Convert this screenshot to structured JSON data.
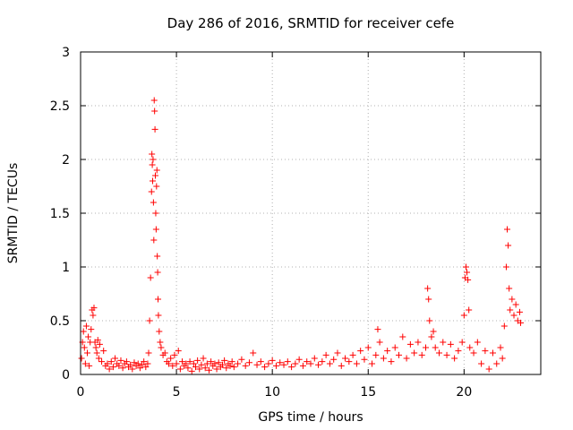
{
  "chart_data": {
    "type": "scatter",
    "title": "Day 286 of 2016, SRMTID for receiver cefe",
    "xlabel": "GPS time / hours",
    "ylabel": "SRMTID / TECUs",
    "xlim": [
      0,
      24
    ],
    "ylim": [
      0,
      3
    ],
    "xticks": [
      0,
      5,
      10,
      15,
      20
    ],
    "xtick_labels": [
      "0",
      "5",
      "10",
      "15",
      "20"
    ],
    "yticks": [
      0,
      0.5,
      1,
      1.5,
      2,
      2.5,
      3
    ],
    "ytick_labels": [
      "0",
      "0.5",
      "1",
      "1.5",
      "2",
      "2.5",
      "3"
    ],
    "grid": true,
    "marker": "+",
    "color": "#ff0000",
    "series": [
      {
        "name": "SRMTID",
        "points": [
          [
            0.05,
            0.15
          ],
          [
            0.1,
            0.3
          ],
          [
            0.15,
            0.4
          ],
          [
            0.2,
            0.25
          ],
          [
            0.25,
            0.1
          ],
          [
            0.3,
            0.45
          ],
          [
            0.35,
            0.2
          ],
          [
            0.4,
            0.35
          ],
          [
            0.45,
            0.08
          ],
          [
            0.5,
            0.3
          ],
          [
            0.55,
            0.42
          ],
          [
            0.6,
            0.6
          ],
          [
            0.65,
            0.55
          ],
          [
            0.7,
            0.62
          ],
          [
            0.75,
            0.3
          ],
          [
            0.8,
            0.25
          ],
          [
            0.85,
            0.2
          ],
          [
            0.9,
            0.32
          ],
          [
            0.95,
            0.15
          ],
          [
            1.0,
            0.28
          ],
          [
            1.1,
            0.12
          ],
          [
            1.2,
            0.22
          ],
          [
            1.3,
            0.08
          ],
          [
            1.4,
            0.1
          ],
          [
            1.5,
            0.05
          ],
          [
            1.6,
            0.12
          ],
          [
            1.7,
            0.07
          ],
          [
            1.8,
            0.15
          ],
          [
            1.9,
            0.1
          ],
          [
            2.0,
            0.08
          ],
          [
            2.1,
            0.13
          ],
          [
            2.2,
            0.06
          ],
          [
            2.3,
            0.1
          ],
          [
            2.4,
            0.12
          ],
          [
            2.5,
            0.07
          ],
          [
            2.6,
            0.09
          ],
          [
            2.7,
            0.05
          ],
          [
            2.8,
            0.11
          ],
          [
            2.9,
            0.08
          ],
          [
            3.0,
            0.1
          ],
          [
            3.1,
            0.06
          ],
          [
            3.2,
            0.09
          ],
          [
            3.3,
            0.12
          ],
          [
            3.4,
            0.07
          ],
          [
            3.5,
            0.1
          ],
          [
            3.55,
            0.2
          ],
          [
            3.6,
            0.5
          ],
          [
            3.65,
            0.9
          ],
          [
            3.7,
            1.7
          ],
          [
            3.72,
            2.05
          ],
          [
            3.74,
            1.95
          ],
          [
            3.76,
            1.8
          ],
          [
            3.78,
            2.0
          ],
          [
            3.8,
            1.6
          ],
          [
            3.82,
            1.25
          ],
          [
            3.84,
            2.55
          ],
          [
            3.86,
            2.45
          ],
          [
            3.88,
            2.28
          ],
          [
            3.9,
            1.85
          ],
          [
            3.92,
            1.5
          ],
          [
            3.94,
            1.35
          ],
          [
            3.96,
            1.75
          ],
          [
            3.98,
            1.9
          ],
          [
            4.0,
            1.1
          ],
          [
            4.02,
            0.95
          ],
          [
            4.04,
            0.7
          ],
          [
            4.06,
            0.55
          ],
          [
            4.1,
            0.4
          ],
          [
            4.15,
            0.3
          ],
          [
            4.2,
            0.25
          ],
          [
            4.3,
            0.18
          ],
          [
            4.4,
            0.2
          ],
          [
            4.5,
            0.12
          ],
          [
            4.6,
            0.1
          ],
          [
            4.7,
            0.15
          ],
          [
            4.8,
            0.08
          ],
          [
            4.9,
            0.18
          ],
          [
            5.0,
            0.1
          ],
          [
            5.1,
            0.22
          ],
          [
            5.2,
            0.05
          ],
          [
            5.3,
            0.12
          ],
          [
            5.4,
            0.08
          ],
          [
            5.5,
            0.1
          ],
          [
            5.6,
            0.06
          ],
          [
            5.7,
            0.12
          ],
          [
            5.8,
            0.03
          ],
          [
            5.9,
            0.1
          ],
          [
            6.0,
            0.07
          ],
          [
            6.1,
            0.13
          ],
          [
            6.2,
            0.05
          ],
          [
            6.3,
            0.09
          ],
          [
            6.4,
            0.15
          ],
          [
            6.5,
            0.06
          ],
          [
            6.6,
            0.1
          ],
          [
            6.7,
            0.04
          ],
          [
            6.8,
            0.12
          ],
          [
            6.9,
            0.08
          ],
          [
            7.0,
            0.1
          ],
          [
            7.1,
            0.05
          ],
          [
            7.2,
            0.11
          ],
          [
            7.3,
            0.07
          ],
          [
            7.4,
            0.09
          ],
          [
            7.5,
            0.13
          ],
          [
            7.6,
            0.06
          ],
          [
            7.7,
            0.1
          ],
          [
            7.8,
            0.08
          ],
          [
            7.9,
            0.12
          ],
          [
            8.0,
            0.07
          ],
          [
            8.2,
            0.1
          ],
          [
            8.4,
            0.14
          ],
          [
            8.6,
            0.08
          ],
          [
            8.8,
            0.11
          ],
          [
            9.0,
            0.2
          ],
          [
            9.2,
            0.09
          ],
          [
            9.4,
            0.12
          ],
          [
            9.6,
            0.07
          ],
          [
            9.8,
            0.1
          ],
          [
            10.0,
            0.13
          ],
          [
            10.2,
            0.08
          ],
          [
            10.4,
            0.11
          ],
          [
            10.6,
            0.09
          ],
          [
            10.8,
            0.12
          ],
          [
            11.0,
            0.07
          ],
          [
            11.2,
            0.1
          ],
          [
            11.4,
            0.14
          ],
          [
            11.6,
            0.08
          ],
          [
            11.8,
            0.12
          ],
          [
            12.0,
            0.1
          ],
          [
            12.2,
            0.15
          ],
          [
            12.4,
            0.09
          ],
          [
            12.6,
            0.12
          ],
          [
            12.8,
            0.18
          ],
          [
            13.0,
            0.1
          ],
          [
            13.2,
            0.14
          ],
          [
            13.4,
            0.2
          ],
          [
            13.6,
            0.08
          ],
          [
            13.8,
            0.15
          ],
          [
            14.0,
            0.12
          ],
          [
            14.2,
            0.18
          ],
          [
            14.4,
            0.1
          ],
          [
            14.6,
            0.22
          ],
          [
            14.8,
            0.14
          ],
          [
            15.0,
            0.25
          ],
          [
            15.2,
            0.1
          ],
          [
            15.4,
            0.18
          ],
          [
            15.5,
            0.42
          ],
          [
            15.6,
            0.3
          ],
          [
            15.8,
            0.15
          ],
          [
            16.0,
            0.22
          ],
          [
            16.2,
            0.12
          ],
          [
            16.4,
            0.25
          ],
          [
            16.6,
            0.18
          ],
          [
            16.8,
            0.35
          ],
          [
            17.0,
            0.15
          ],
          [
            17.2,
            0.28
          ],
          [
            17.4,
            0.2
          ],
          [
            17.6,
            0.3
          ],
          [
            17.8,
            0.18
          ],
          [
            18.0,
            0.25
          ],
          [
            18.1,
            0.8
          ],
          [
            18.15,
            0.7
          ],
          [
            18.2,
            0.5
          ],
          [
            18.3,
            0.35
          ],
          [
            18.4,
            0.4
          ],
          [
            18.5,
            0.25
          ],
          [
            18.7,
            0.2
          ],
          [
            18.9,
            0.3
          ],
          [
            19.1,
            0.18
          ],
          [
            19.3,
            0.28
          ],
          [
            19.5,
            0.15
          ],
          [
            19.7,
            0.22
          ],
          [
            19.9,
            0.3
          ],
          [
            20.0,
            0.55
          ],
          [
            20.05,
            0.9
          ],
          [
            20.1,
            1.0
          ],
          [
            20.15,
            0.95
          ],
          [
            20.2,
            0.88
          ],
          [
            20.25,
            0.6
          ],
          [
            20.3,
            0.25
          ],
          [
            20.5,
            0.2
          ],
          [
            20.7,
            0.3
          ],
          [
            20.9,
            0.1
          ],
          [
            21.1,
            0.22
          ],
          [
            21.3,
            0.05
          ],
          [
            21.5,
            0.2
          ],
          [
            21.7,
            0.1
          ],
          [
            21.9,
            0.25
          ],
          [
            22.0,
            0.15
          ],
          [
            22.1,
            0.45
          ],
          [
            22.2,
            1.0
          ],
          [
            22.25,
            1.35
          ],
          [
            22.3,
            1.2
          ],
          [
            22.35,
            0.8
          ],
          [
            22.4,
            0.6
          ],
          [
            22.5,
            0.7
          ],
          [
            22.6,
            0.55
          ],
          [
            22.7,
            0.65
          ],
          [
            22.8,
            0.5
          ],
          [
            22.9,
            0.58
          ],
          [
            22.95,
            0.48
          ]
        ]
      }
    ]
  }
}
